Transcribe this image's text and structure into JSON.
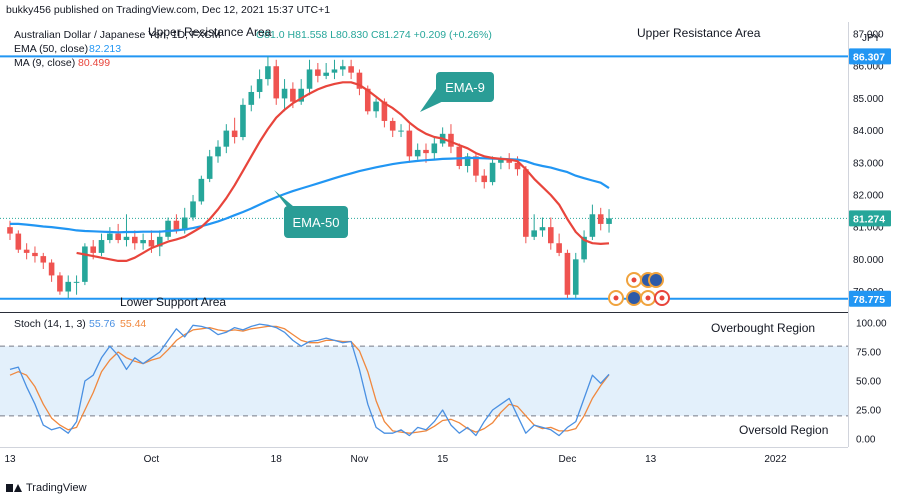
{
  "header": {
    "published": "bukky456 published on TradingView.com, Dec 12, 2021 15:37 UTC+1",
    "symbol": "Australian Dollar / Japanese Yen, 1D, FXCM",
    "ohlc": "O81.0  H81.558  L80.830  C81.274  +0.209 (+0.26%)",
    "ema_label": "EMA (50, close)",
    "ema_value": "82.213",
    "ma_label": "MA (9, close)",
    "ma_value": "80.499",
    "stoch_label": "Stoch (14, 1, 3)",
    "stoch_k": "55.76",
    "stoch_d": "55.44"
  },
  "annotations": {
    "upper_resistance_left": "Upper Resistance Area",
    "upper_resistance_right": "Upper Resistance Area",
    "lower_support": "Lower Support Area",
    "ema9_callout": "EMA-9",
    "ema50_callout": "EMA-50",
    "overbought": "Overbought Region",
    "oversold": "Oversold Region"
  },
  "footer": {
    "brand": "TradingView"
  },
  "colors": {
    "up": "#26a69a",
    "down": "#ef5350",
    "ema50": "#2196f3",
    "ma9": "#e8453c",
    "level": "#2196f3",
    "callout": "#2a9d96",
    "stoch_k": "#4a90e2",
    "stoch_d": "#f0883e",
    "band": "#e3f0fb"
  },
  "chart_data": [
    {
      "type": "candlestick",
      "currency": "JPY",
      "ylim": [
        78.55,
        87.25
      ],
      "yticks": [
        79.0,
        80.0,
        81.0,
        82.0,
        83.0,
        84.0,
        85.0,
        86.0,
        87.0
      ],
      "ytick_labels": [
        "79.000",
        "80.000",
        "81.000",
        "82.000",
        "83.000",
        "84.000",
        "85.000",
        "86.000",
        "87.000"
      ],
      "xticks": [
        {
          "index": 0,
          "label": "13"
        },
        {
          "index": 17,
          "label": "Oct"
        },
        {
          "index": 32,
          "label": "18"
        },
        {
          "index": 42,
          "label": "Nov"
        },
        {
          "index": 52,
          "label": "15"
        },
        {
          "index": 67,
          "label": "Dec"
        },
        {
          "index": 77,
          "label": "13"
        },
        {
          "index": 92,
          "label": "2022"
        }
      ],
      "levels": [
        {
          "name": "upper",
          "value": 86.307,
          "label": "86.307"
        },
        {
          "name": "lower",
          "value": 78.775,
          "label": "78.775"
        }
      ],
      "last_price": {
        "value": 81.274,
        "label": "81.274"
      },
      "candles": [
        [
          81.0,
          80.8,
          81.2,
          80.6
        ],
        [
          80.8,
          80.3,
          80.9,
          80.2
        ],
        [
          80.3,
          80.2,
          80.5,
          80.0
        ],
        [
          80.2,
          80.1,
          80.4,
          79.9
        ],
        [
          80.1,
          79.9,
          80.2,
          79.7
        ],
        [
          79.9,
          79.5,
          80.0,
          79.3
        ],
        [
          79.5,
          79.0,
          79.6,
          78.9
        ],
        [
          79.0,
          79.3,
          79.5,
          78.8
        ],
        [
          79.3,
          79.3,
          79.5,
          78.9
        ],
        [
          79.3,
          80.4,
          80.5,
          79.2
        ],
        [
          80.4,
          80.2,
          80.6,
          80.0
        ],
        [
          80.2,
          80.6,
          80.8,
          80.1
        ],
        [
          80.6,
          80.8,
          81.0,
          80.5
        ],
        [
          80.8,
          80.6,
          81.1,
          80.5
        ],
        [
          80.6,
          80.7,
          81.4,
          80.4
        ],
        [
          80.7,
          80.5,
          80.9,
          80.3
        ],
        [
          80.5,
          80.6,
          80.8,
          80.3
        ],
        [
          80.6,
          80.4,
          80.9,
          80.2
        ],
        [
          80.4,
          80.7,
          80.9,
          80.1
        ],
        [
          80.7,
          81.2,
          81.3,
          80.6
        ],
        [
          81.2,
          80.9,
          81.4,
          80.8
        ],
        [
          80.9,
          81.3,
          81.6,
          80.8
        ],
        [
          81.3,
          81.8,
          82.0,
          81.2
        ],
        [
          81.8,
          82.5,
          82.6,
          81.7
        ],
        [
          82.5,
          83.2,
          83.4,
          82.4
        ],
        [
          83.2,
          83.5,
          83.7,
          83.0
        ],
        [
          83.5,
          84.0,
          84.2,
          83.3
        ],
        [
          84.0,
          83.8,
          84.4,
          83.6
        ],
        [
          83.8,
          84.8,
          85.0,
          83.7
        ],
        [
          84.8,
          85.2,
          85.4,
          84.6
        ],
        [
          85.2,
          85.6,
          85.9,
          85.0
        ],
        [
          85.6,
          86.0,
          86.3,
          85.4
        ],
        [
          86.0,
          85.0,
          86.2,
          84.8
        ],
        [
          85.0,
          85.3,
          85.6,
          84.6
        ],
        [
          85.3,
          84.9,
          85.5,
          84.7
        ],
        [
          84.9,
          85.3,
          85.6,
          84.8
        ],
        [
          85.3,
          85.9,
          86.2,
          85.1
        ],
        [
          85.9,
          85.7,
          86.1,
          85.5
        ],
        [
          85.7,
          85.8,
          86.1,
          85.6
        ],
        [
          85.8,
          85.9,
          86.2,
          85.6
        ],
        [
          85.9,
          86.0,
          86.2,
          85.7
        ],
        [
          86.0,
          85.8,
          86.2,
          85.6
        ],
        [
          85.8,
          85.3,
          85.9,
          85.1
        ],
        [
          85.3,
          84.6,
          85.4,
          84.5
        ],
        [
          84.6,
          84.9,
          85.0,
          84.4
        ],
        [
          84.9,
          84.3,
          85.0,
          84.1
        ],
        [
          84.3,
          84.0,
          84.4,
          83.8
        ],
        [
          84.0,
          84.0,
          84.2,
          83.8
        ],
        [
          84.0,
          83.2,
          84.2,
          83.0
        ],
        [
          83.2,
          83.4,
          83.6,
          83.1
        ],
        [
          83.4,
          83.3,
          83.6,
          83.0
        ],
        [
          83.3,
          83.6,
          83.8,
          83.1
        ],
        [
          83.6,
          83.9,
          84.1,
          83.5
        ],
        [
          83.9,
          83.5,
          84.2,
          83.3
        ],
        [
          83.5,
          82.9,
          83.6,
          82.8
        ],
        [
          82.9,
          83.2,
          83.3,
          82.7
        ],
        [
          83.2,
          82.6,
          83.3,
          82.4
        ],
        [
          82.6,
          82.4,
          82.8,
          82.2
        ],
        [
          82.4,
          83.0,
          83.2,
          82.3
        ],
        [
          83.0,
          83.1,
          83.2,
          82.8
        ],
        [
          83.1,
          83.0,
          83.3,
          82.8
        ],
        [
          83.0,
          82.8,
          83.2,
          82.6
        ],
        [
          82.8,
          80.7,
          82.9,
          80.5
        ],
        [
          80.7,
          80.9,
          81.4,
          80.6
        ],
        [
          80.9,
          81.0,
          81.3,
          80.7
        ],
        [
          81.0,
          80.5,
          81.3,
          80.3
        ],
        [
          80.5,
          80.2,
          80.8,
          80.1
        ],
        [
          80.2,
          78.9,
          80.3,
          78.8
        ],
        [
          78.9,
          80.0,
          80.2,
          78.8
        ],
        [
          80.0,
          80.7,
          80.9,
          79.9
        ],
        [
          80.7,
          81.4,
          81.7,
          80.6
        ],
        [
          81.4,
          81.1,
          81.6,
          80.9
        ],
        [
          81.1,
          81.274,
          81.558,
          80.83
        ]
      ],
      "series": [
        {
          "name": "EMA (50, close)",
          "values": [
            81.1,
            81.1,
            81.08,
            81.05,
            81.02,
            81.0,
            80.97,
            80.94,
            80.9,
            80.88,
            80.87,
            80.86,
            80.85,
            80.84,
            80.85,
            80.85,
            80.86,
            80.86,
            80.86,
            80.88,
            80.9,
            80.93,
            80.97,
            81.03,
            81.1,
            81.18,
            81.27,
            81.37,
            81.47,
            81.58,
            81.7,
            81.82,
            81.93,
            82.03,
            82.12,
            82.2,
            82.28,
            82.36,
            82.44,
            82.52,
            82.6,
            82.67,
            82.74,
            82.8,
            82.86,
            82.91,
            82.96,
            83.0,
            83.03,
            83.06,
            83.08,
            83.1,
            83.12,
            83.13,
            83.14,
            83.15,
            83.15,
            83.14,
            83.13,
            83.12,
            83.11,
            83.1,
            83.05,
            82.96,
            82.9,
            82.85,
            82.78,
            82.71,
            82.6,
            82.52,
            82.45,
            82.38,
            82.213
          ]
        },
        {
          "name": "MA (9, close)",
          "values": [
            null,
            null,
            null,
            null,
            null,
            null,
            null,
            null,
            80.2,
            80.15,
            80.1,
            80.05,
            80.0,
            79.95,
            79.95,
            80.05,
            80.2,
            80.35,
            80.45,
            80.55,
            80.62,
            80.7,
            80.85,
            81.0,
            81.25,
            81.55,
            81.9,
            82.3,
            82.75,
            83.2,
            83.65,
            84.05,
            84.4,
            84.65,
            84.85,
            85.0,
            85.15,
            85.28,
            85.38,
            85.45,
            85.5,
            85.5,
            85.42,
            85.25,
            85.05,
            84.85,
            84.7,
            84.5,
            84.25,
            84.05,
            83.9,
            83.8,
            83.75,
            83.65,
            83.55,
            83.45,
            83.3,
            83.2,
            83.15,
            83.12,
            83.1,
            83.05,
            82.8,
            82.5,
            82.25,
            82.0,
            81.7,
            81.25,
            80.85,
            80.6,
            80.5,
            80.48,
            80.499
          ]
        }
      ]
    },
    {
      "type": "line",
      "title": "Stoch (14, 1, 3)",
      "ylim": [
        -6,
        106
      ],
      "yticks": [
        0,
        25,
        50,
        75,
        100
      ],
      "ytick_labels": [
        "0.00",
        "25.00",
        "50.00",
        "75.00",
        "100.00"
      ],
      "bands": {
        "upper": 80,
        "lower": 20
      },
      "series": [
        {
          "name": "K",
          "values": [
            60,
            62,
            45,
            30,
            12,
            8,
            10,
            5,
            15,
            50,
            55,
            70,
            80,
            72,
            60,
            70,
            65,
            70,
            75,
            85,
            95,
            88,
            98,
            97,
            95,
            90,
            92,
            96,
            94,
            97,
            99,
            98,
            96,
            92,
            85,
            80,
            84,
            85,
            87,
            85,
            83,
            84,
            60,
            30,
            10,
            5,
            5,
            8,
            3,
            10,
            8,
            15,
            25,
            12,
            5,
            10,
            3,
            15,
            25,
            30,
            35,
            20,
            5,
            12,
            10,
            8,
            3,
            10,
            15,
            35,
            55,
            48,
            55.76
          ]
        },
        {
          "name": "D",
          "values": [
            55,
            58,
            55,
            45,
            30,
            18,
            12,
            8,
            10,
            25,
            40,
            58,
            68,
            75,
            70,
            67,
            65,
            68,
            70,
            77,
            85,
            90,
            94,
            95,
            96,
            94,
            93,
            94,
            93,
            95,
            96,
            97,
            97,
            95,
            90,
            85,
            83,
            83,
            85,
            85,
            84,
            84,
            76,
            58,
            33,
            15,
            7,
            6,
            5,
            6,
            7,
            11,
            16,
            17,
            14,
            9,
            6,
            9,
            14,
            23,
            30,
            28,
            20,
            12,
            9,
            10,
            7,
            7,
            9,
            20,
            35,
            46,
            55.44
          ]
        }
      ]
    }
  ]
}
